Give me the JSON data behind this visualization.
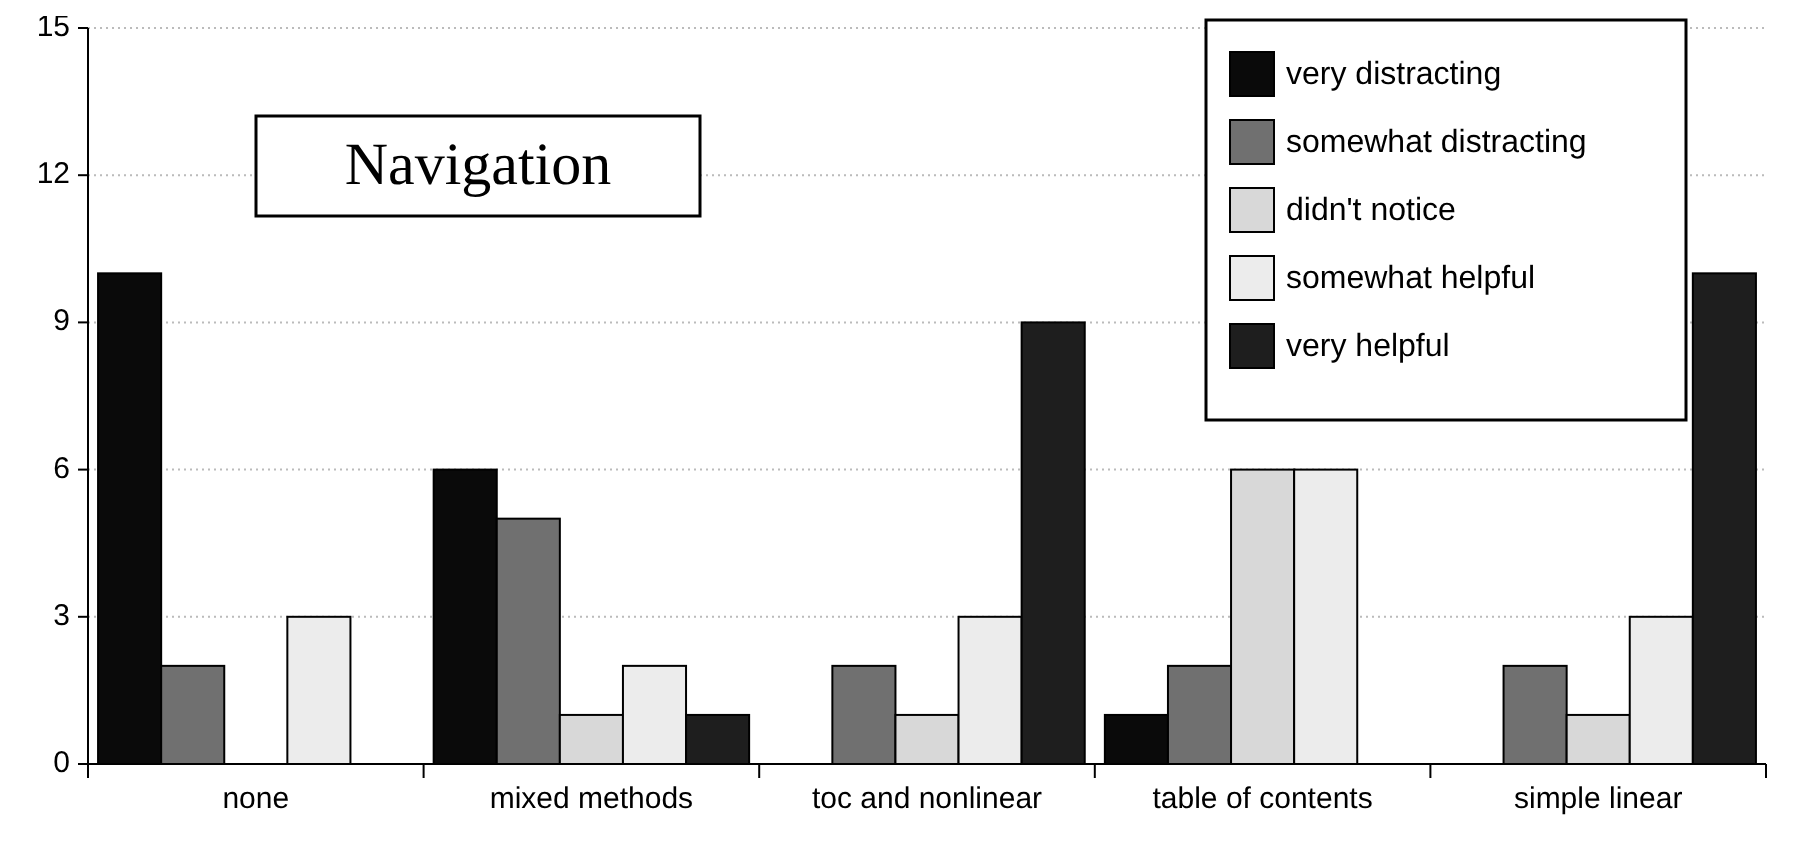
{
  "chart_data": {
    "type": "bar",
    "title": "Navigation",
    "categories": [
      "none",
      "mixed methods",
      "toc and nonlinear",
      "table of contents",
      "simple linear"
    ],
    "series": [
      {
        "name": "very distracting",
        "color": "#0a0a0a",
        "values": [
          10,
          6,
          0,
          1,
          0
        ]
      },
      {
        "name": "somewhat distracting",
        "color": "#707070",
        "values": [
          2,
          5,
          2,
          2,
          2
        ]
      },
      {
        "name": "didn't notice",
        "color": "#d8d8d8",
        "values": [
          0,
          1,
          1,
          6,
          1
        ]
      },
      {
        "name": "somewhat helpful",
        "color": "#ececec",
        "values": [
          3,
          2,
          3,
          6,
          3
        ]
      },
      {
        "name": "very helpful",
        "color": "#1e1e1e",
        "values": [
          0,
          1,
          9,
          0,
          10
        ]
      }
    ],
    "ylim": [
      0,
      15
    ],
    "yticks": [
      0,
      3,
      6,
      9,
      12,
      15
    ],
    "grid": "y",
    "legend": "top right"
  }
}
